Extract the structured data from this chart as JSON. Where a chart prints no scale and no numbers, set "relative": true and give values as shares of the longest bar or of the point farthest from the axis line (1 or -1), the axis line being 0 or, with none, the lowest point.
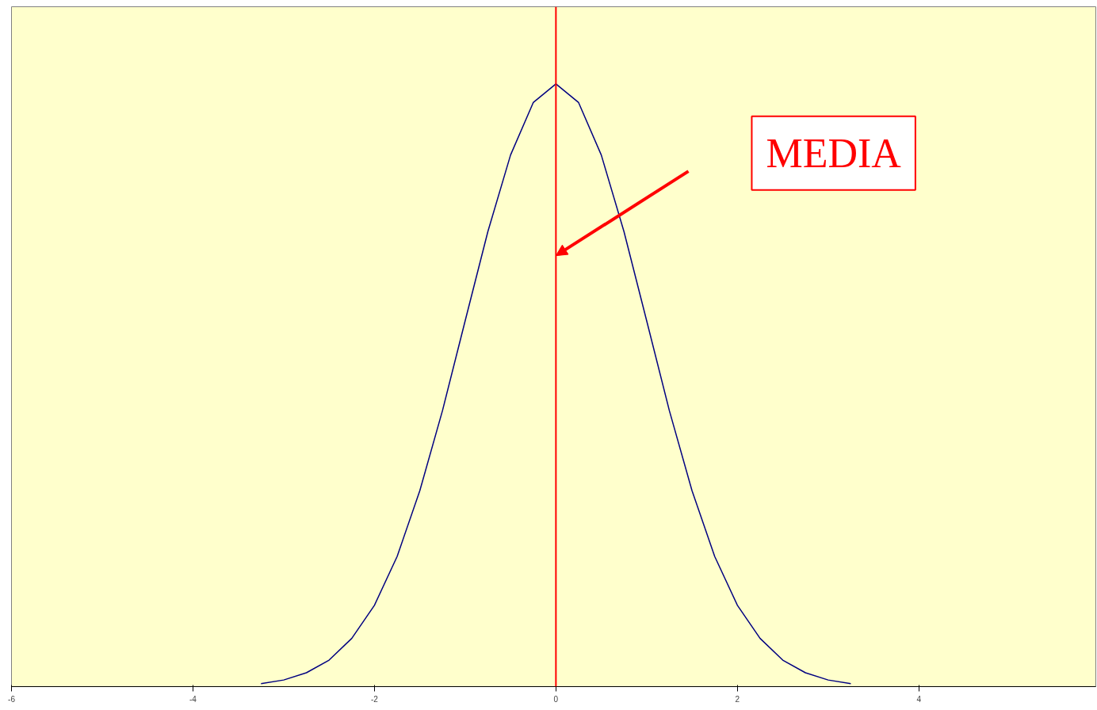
{
  "chart_data": {
    "type": "line",
    "relative": true,
    "x": [
      -3.25,
      -3,
      -2.75,
      -2.5,
      -2.25,
      -2,
      -1.75,
      -1.5,
      -1.25,
      -1,
      -0.75,
      -0.5,
      -0.25,
      0,
      0.25,
      0.5,
      0.75,
      1,
      1.25,
      1.5,
      1.75,
      2,
      2.25,
      2.5,
      2.75,
      3,
      3.25
    ],
    "series": [
      {
        "color": "#000080",
        "values": [
          0.005,
          0.011,
          0.023,
          0.044,
          0.08,
          0.135,
          0.216,
          0.325,
          0.458,
          0.607,
          0.755,
          0.882,
          0.969,
          1,
          0.969,
          0.882,
          0.755,
          0.607,
          0.458,
          0.325,
          0.216,
          0.135,
          0.08,
          0.044,
          0.023,
          0.011,
          0.005
        ]
      }
    ],
    "xlim": [
      -6,
      5.95
    ],
    "xticks": [
      -6,
      -4,
      -2,
      0,
      2,
      4
    ],
    "ref_lines": [
      {
        "axis": "x",
        "value": 0,
        "color": "#ff0000"
      }
    ],
    "annotations": [
      "MEDIA"
    ],
    "grid": false,
    "marker": "none",
    "line_style": "solid"
  }
}
